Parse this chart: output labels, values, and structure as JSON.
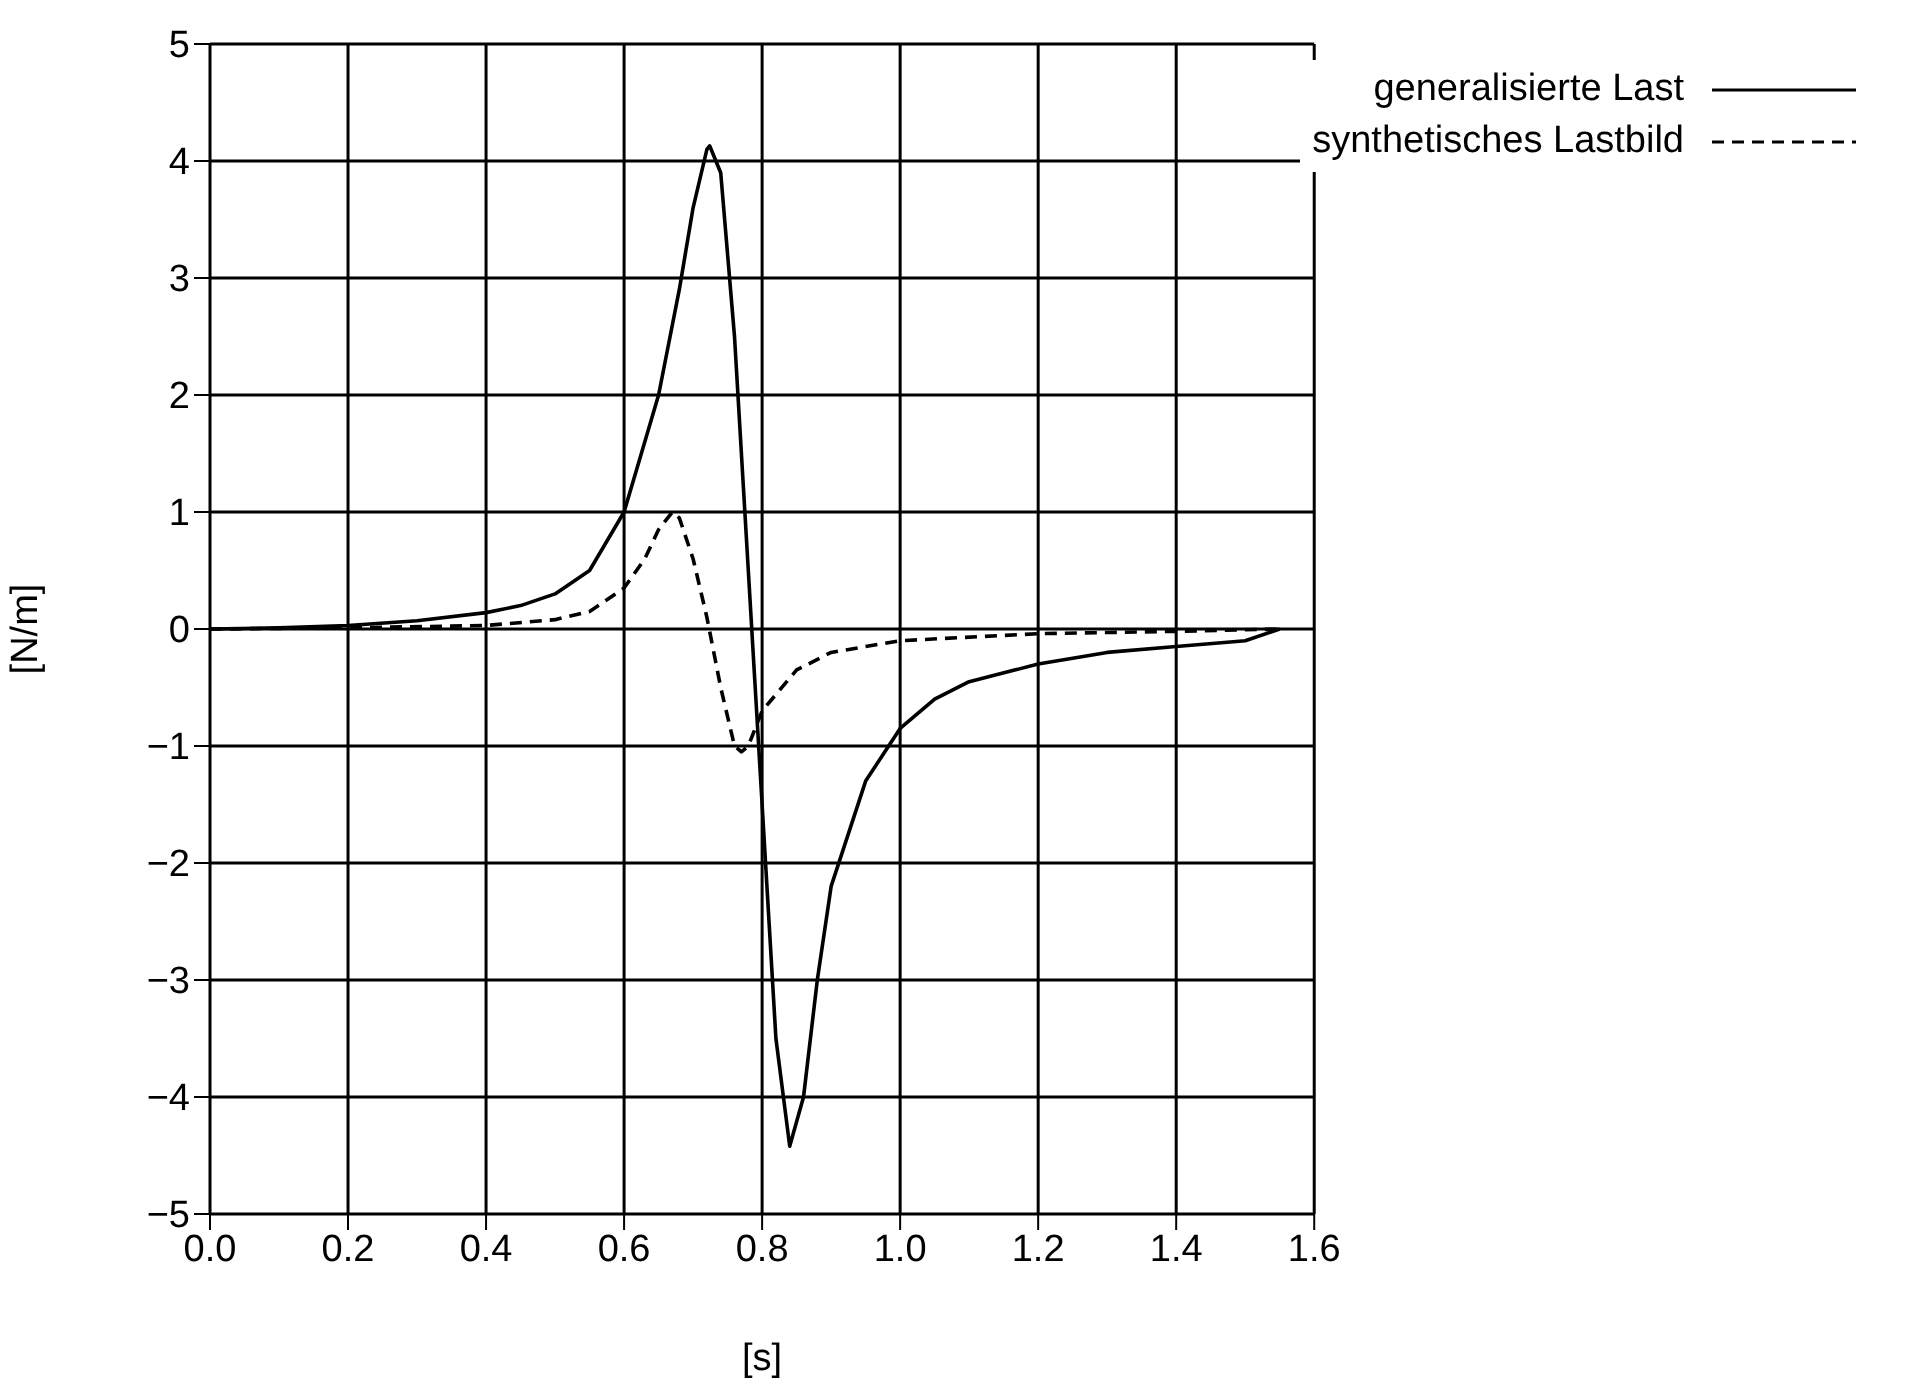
{
  "chart_data": {
    "type": "line",
    "xlabel": "[s]",
    "ylabel": "[N/m]",
    "xlim": [
      0,
      1.6
    ],
    "xticks": [
      {
        "value": 0,
        "label": "0.0"
      },
      {
        "value": 0.2,
        "label": "0.2"
      },
      {
        "value": 0.4,
        "label": "0.4"
      },
      {
        "value": 0.6,
        "label": "0.6"
      },
      {
        "value": 0.8,
        "label": "0.8"
      },
      {
        "value": 1,
        "label": "1.0"
      },
      {
        "value": 1.2,
        "label": "1.2"
      },
      {
        "value": 1.4,
        "label": "1.4"
      },
      {
        "value": 1.6,
        "label": "1.6"
      }
    ],
    "ylim": [
      -5,
      5
    ],
    "yticks": [
      {
        "value": -5,
        "label": "−5"
      },
      {
        "value": -4,
        "label": "−4"
      },
      {
        "value": -3,
        "label": "−3"
      },
      {
        "value": -2,
        "label": "−2"
      },
      {
        "value": -1,
        "label": "−1"
      },
      0,
      1,
      2,
      3,
      4,
      5
    ],
    "grid": true,
    "legend": "top right",
    "marker": "none",
    "series": [
      {
        "name": "generalisierte Last",
        "color": "#000000",
        "line_style": "solid",
        "x": [
          0,
          0.1,
          0.2,
          0.3,
          0.4,
          0.45,
          0.5,
          0.55,
          0.6,
          0.62,
          0.65,
          0.68,
          0.7,
          0.72,
          0.724,
          0.74,
          0.76,
          0.78,
          0.79,
          0.8,
          0.82,
          0.84,
          0.86,
          0.88,
          0.9,
          0.95,
          1.0,
          1.05,
          1.1,
          1.2,
          1.3,
          1.4,
          1.5,
          1.55
        ],
        "values": [
          0,
          0.01,
          0.03,
          0.07,
          0.14,
          0.2,
          0.3,
          0.5,
          1.0,
          1.4,
          2.0,
          2.9,
          3.6,
          4.1,
          4.13,
          3.9,
          2.5,
          0.5,
          -0.5,
          -1.5,
          -3.5,
          -4.42,
          -4.0,
          -3.0,
          -2.2,
          -1.3,
          -0.85,
          -0.6,
          -0.45,
          -0.3,
          -0.2,
          -0.15,
          -0.1,
          0
        ]
      },
      {
        "name": "synthetisches Lastbild",
        "color": "#000000",
        "line_style": "dashed",
        "x": [
          0,
          0.2,
          0.4,
          0.5,
          0.55,
          0.6,
          0.63,
          0.65,
          0.67,
          0.68,
          0.7,
          0.72,
          0.74,
          0.76,
          0.77,
          0.78,
          0.8,
          0.85,
          0.9,
          1.0,
          1.2,
          1.4,
          1.55
        ],
        "values": [
          0,
          0.01,
          0.03,
          0.08,
          0.15,
          0.35,
          0.6,
          0.85,
          1.0,
          0.95,
          0.6,
          0.1,
          -0.5,
          -1.0,
          -1.05,
          -1.0,
          -0.7,
          -0.35,
          -0.2,
          -0.1,
          -0.04,
          -0.02,
          0
        ]
      }
    ]
  }
}
